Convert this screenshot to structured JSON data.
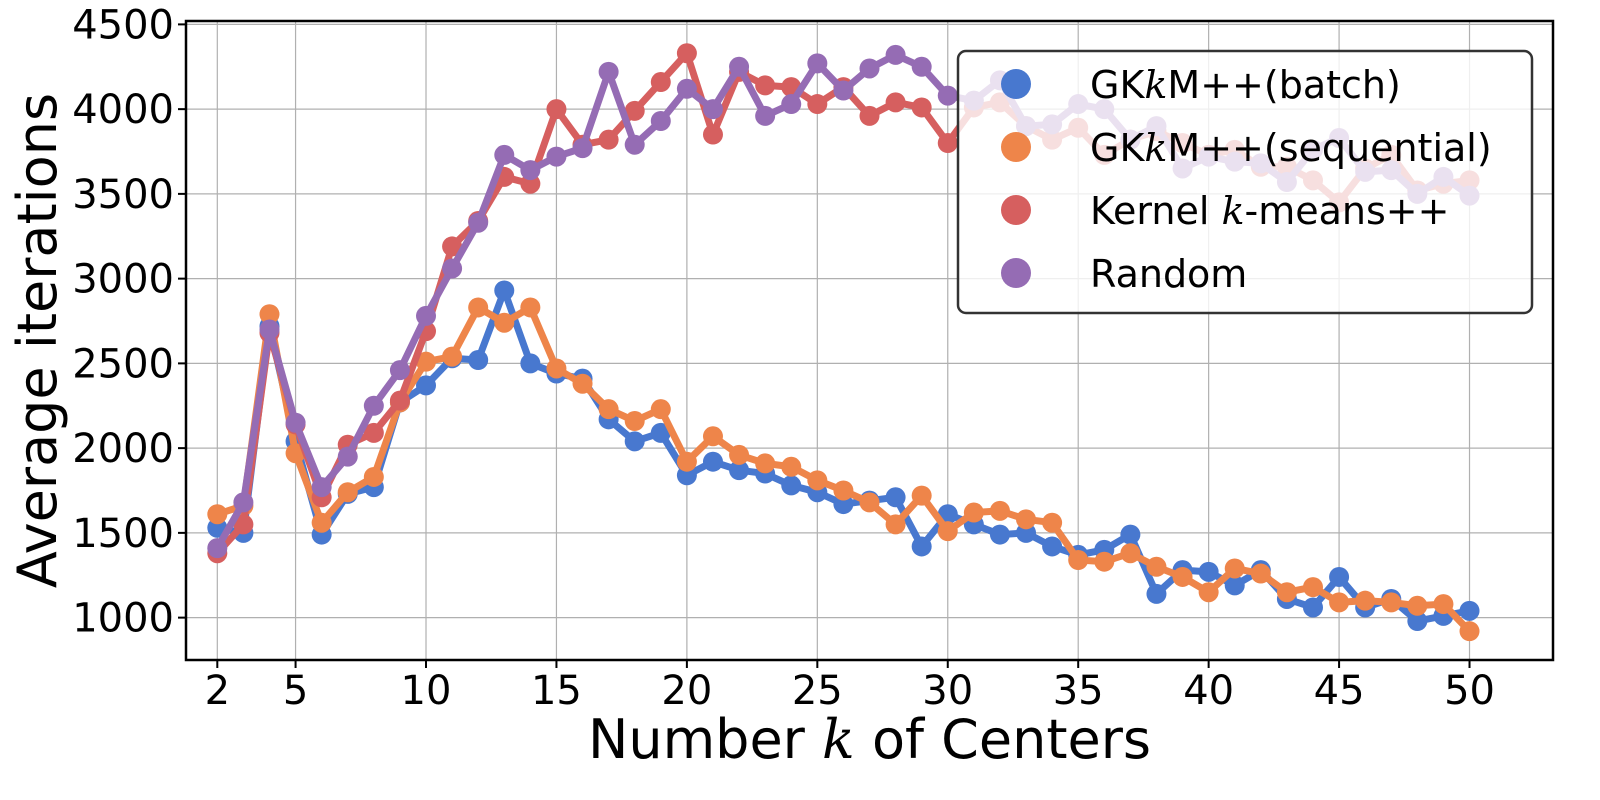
{
  "chart_data": {
    "type": "line",
    "xlabel": {
      "before": "Number ",
      "math": "k",
      "after": " of Centers"
    },
    "ylabel": "Average iterations",
    "xlim": [
      0.8,
      53.2
    ],
    "ylim": [
      750,
      4520
    ],
    "xticks": [
      2,
      5,
      10,
      15,
      20,
      25,
      30,
      35,
      40,
      45,
      50
    ],
    "yticks": [
      1000,
      1500,
      2000,
      2500,
      3000,
      3500,
      4000,
      4500
    ],
    "grid": true,
    "legend_position": "top-right",
    "x": [
      2,
      3,
      4,
      5,
      6,
      7,
      8,
      9,
      10,
      11,
      12,
      13,
      14,
      15,
      16,
      17,
      18,
      19,
      20,
      21,
      22,
      23,
      24,
      25,
      26,
      27,
      28,
      29,
      30,
      31,
      32,
      33,
      34,
      35,
      36,
      37,
      38,
      39,
      40,
      41,
      42,
      43,
      44,
      45,
      46,
      47,
      48,
      49,
      50
    ],
    "series": [
      {
        "name": "GKkM++(batch)",
        "legend": {
          "before": "GK",
          "math": "k",
          "after": "M++(batch)"
        },
        "color": "#4878cf",
        "values": [
          1530,
          1500,
          2720,
          2040,
          1490,
          1730,
          1770,
          2270,
          2370,
          2530,
          2520,
          2930,
          2500,
          2440,
          2410,
          2170,
          2040,
          2090,
          1840,
          1920,
          1870,
          1850,
          1780,
          1740,
          1670,
          1690,
          1710,
          1420,
          1610,
          1550,
          1490,
          1500,
          1420,
          1370,
          1400,
          1490,
          1140,
          1280,
          1270,
          1190,
          1280,
          1110,
          1060,
          1240,
          1060,
          1110,
          980,
          1010,
          1040
        ]
      },
      {
        "name": "GKkM++(sequential)",
        "legend": {
          "before": "GK",
          "math": "k",
          "after": "M++(sequential)"
        },
        "color": "#ee854a",
        "values": [
          1610,
          1660,
          2790,
          1970,
          1560,
          1740,
          1830,
          2270,
          2510,
          2540,
          2830,
          2740,
          2830,
          2470,
          2380,
          2230,
          2160,
          2230,
          1920,
          2070,
          1960,
          1910,
          1890,
          1810,
          1750,
          1680,
          1550,
          1720,
          1510,
          1620,
          1630,
          1580,
          1560,
          1340,
          1330,
          1380,
          1300,
          1240,
          1150,
          1290,
          1260,
          1150,
          1180,
          1090,
          1100,
          1090,
          1070,
          1080,
          920
        ]
      },
      {
        "name": "Kernel k-means++",
        "legend": {
          "before": "Kernel ",
          "math": "k",
          "after": "-means++"
        },
        "color": "#d65f5f",
        "values": [
          1380,
          1550,
          2680,
          2140,
          1710,
          2020,
          2090,
          2280,
          2690,
          3190,
          3340,
          3600,
          3560,
          4000,
          3790,
          3820,
          3990,
          4160,
          4330,
          3850,
          4220,
          4140,
          4130,
          4030,
          4130,
          3960,
          4040,
          4010,
          3800,
          4010,
          4040,
          3900,
          3820,
          3890,
          3730,
          3820,
          3870,
          3800,
          3730,
          3760,
          3660,
          3660,
          3580,
          3450,
          3650,
          3730,
          3520,
          3560,
          3580
        ]
      },
      {
        "name": "Random",
        "legend": {
          "before": "Random",
          "math": "",
          "after": ""
        },
        "color": "#956cb4",
        "values": [
          1410,
          1680,
          2700,
          2150,
          1770,
          1950,
          2250,
          2460,
          2780,
          3060,
          3330,
          3730,
          3640,
          3720,
          3770,
          4220,
          3790,
          3930,
          4120,
          4000,
          4250,
          3960,
          4030,
          4270,
          4110,
          4240,
          4320,
          4250,
          4080,
          4050,
          4170,
          3900,
          3910,
          4030,
          4000,
          3820,
          3900,
          3650,
          3720,
          3690,
          3680,
          3570,
          3760,
          3830,
          3630,
          3640,
          3500,
          3600,
          3490
        ]
      }
    ]
  }
}
